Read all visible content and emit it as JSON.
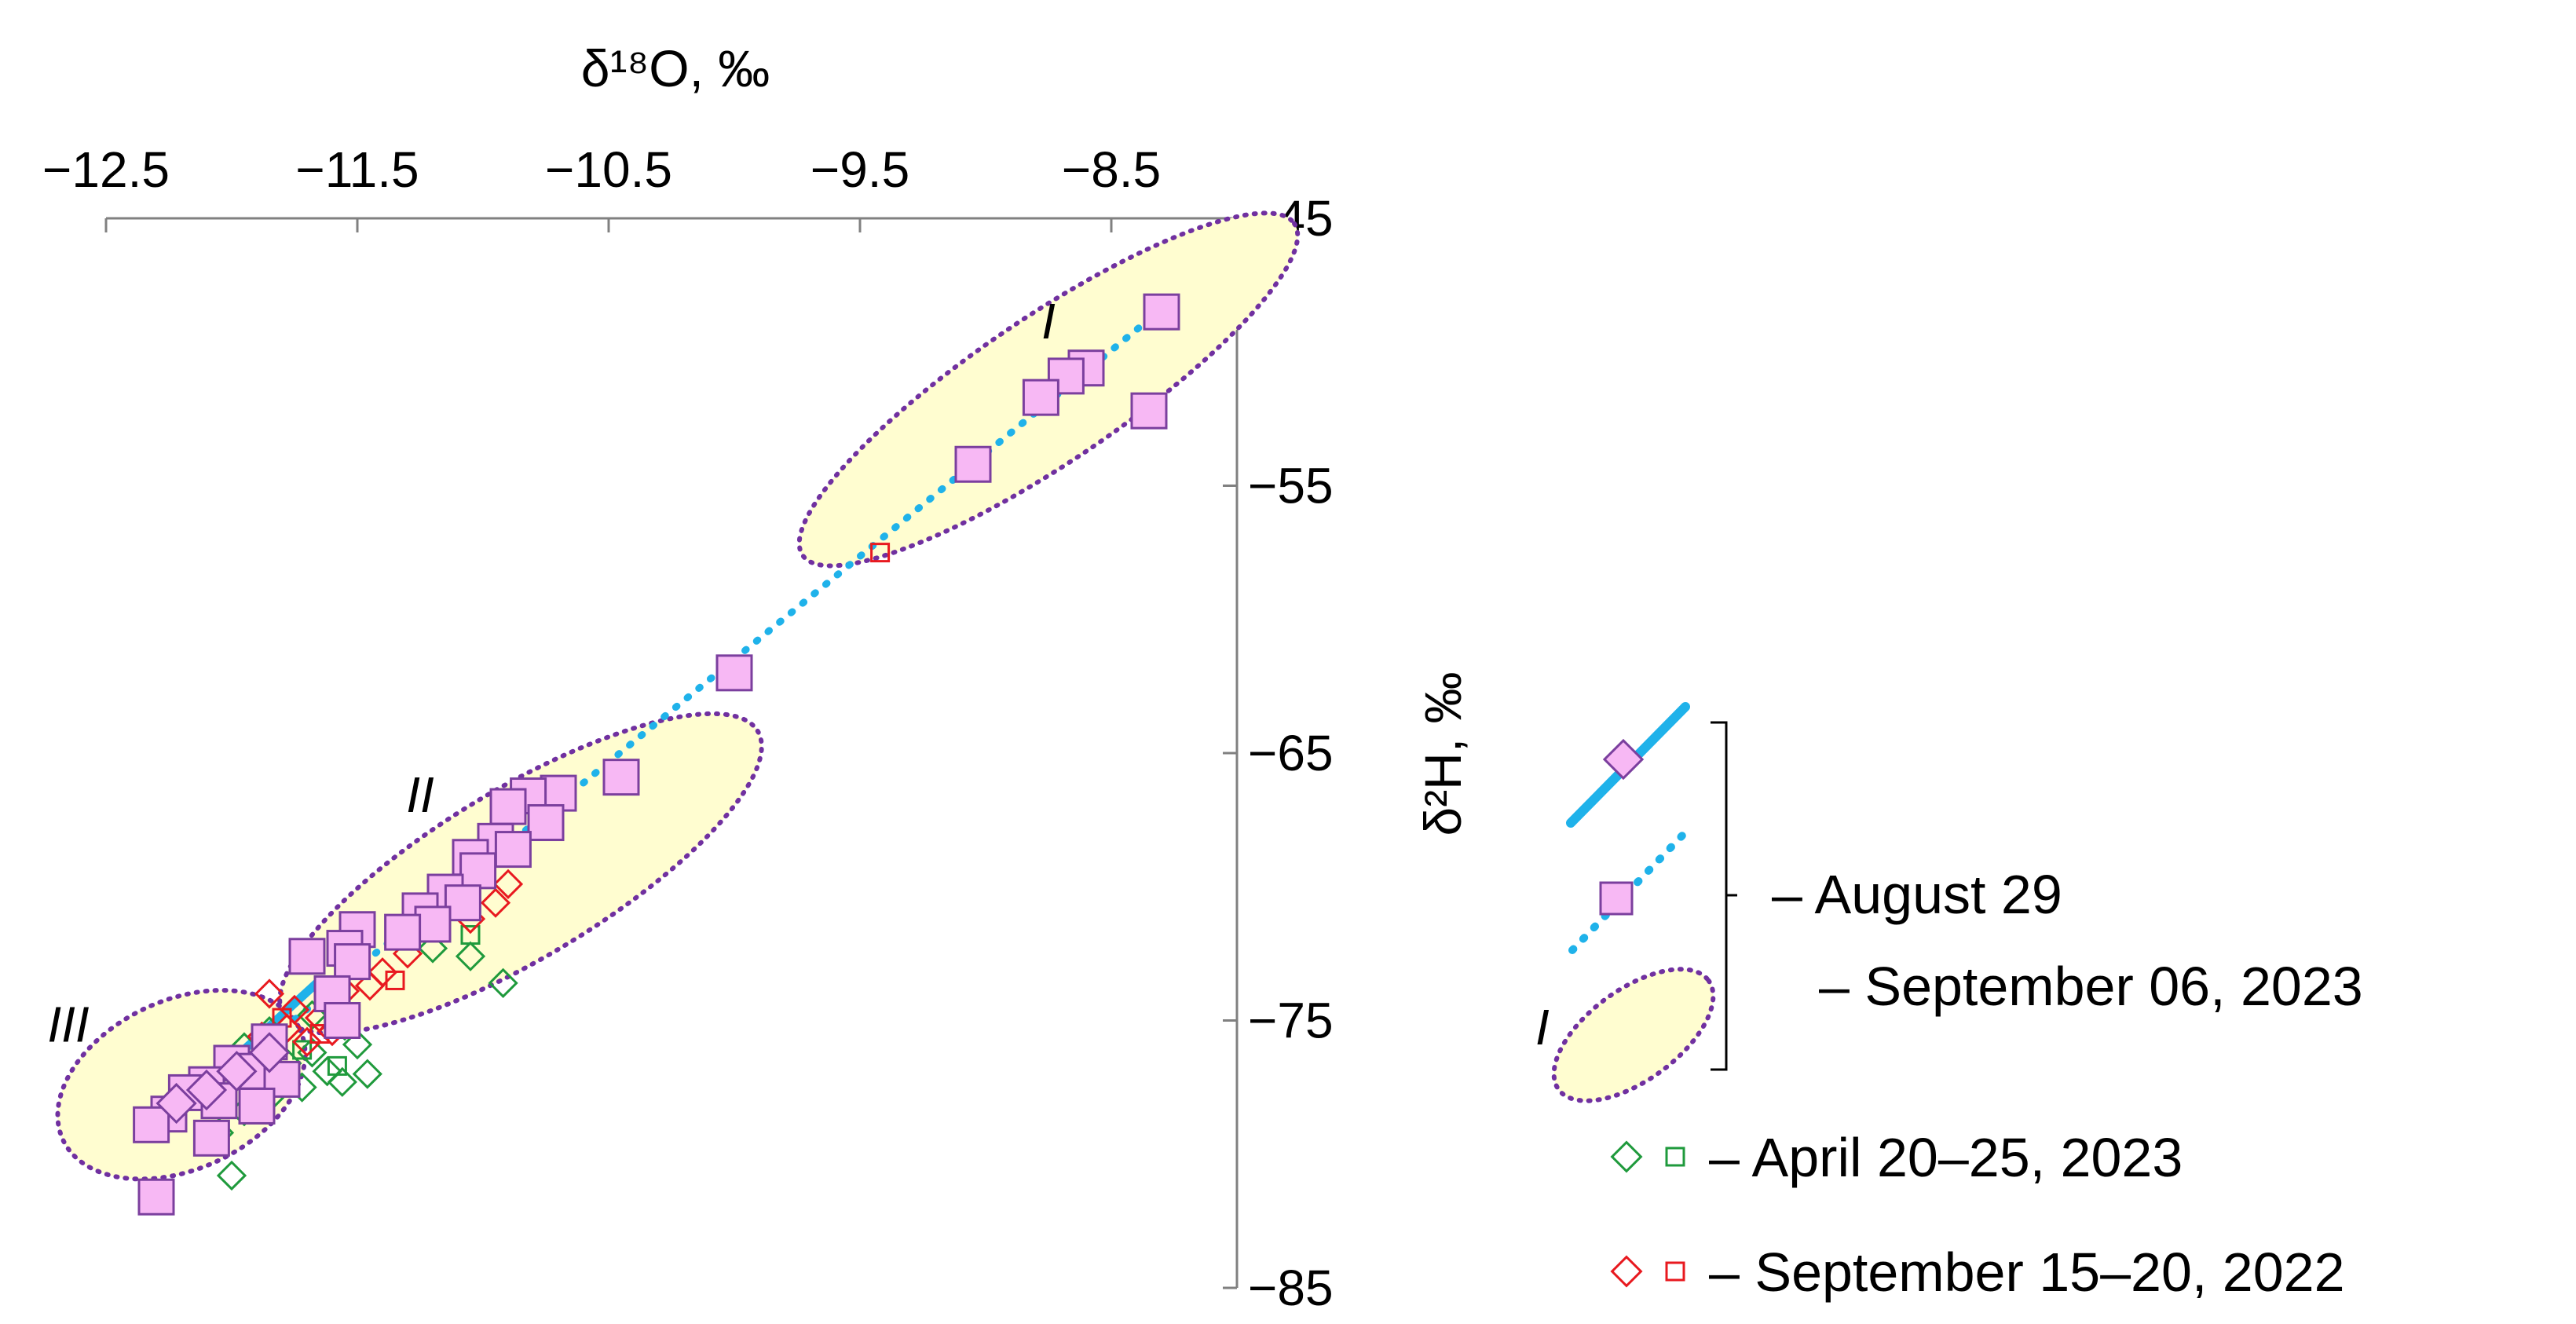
{
  "chart_data": {
    "type": "scatter",
    "xlabel": "δ¹⁸O, ‰",
    "ylabel": "δ²H, ‰",
    "xlim": [
      -12.5,
      -8.0
    ],
    "ylim": [
      -85,
      -45
    ],
    "x_axis_position": "top",
    "y_axis_position": "right",
    "x_ticks": [
      -12.5,
      -11.5,
      -10.5,
      -9.5,
      -8.5
    ],
    "x_tick_labels": [
      "−12.5",
      "−11.5",
      "−10.5",
      "−9.5",
      "−8.5"
    ],
    "y_ticks": [
      -45,
      -55,
      -65,
      -75,
      -85
    ],
    "y_tick_labels": [
      "−45",
      "−55",
      "−65",
      "−75",
      "−85"
    ],
    "grid": false,
    "legend_position": "right",
    "legend": [
      {
        "label_line1": "– August 29",
        "label_line2": "– September 06, 2023",
        "markers": [
          "solid-line-diamond",
          "dotted-line-square",
          "ellipse-I"
        ]
      },
      {
        "label": "– April 20–25, 2023",
        "markers": [
          "green-diamond",
          "green-square"
        ]
      },
      {
        "label": "– September 15–20, 2022",
        "markers": [
          "red-diamond",
          "red-square"
        ]
      }
    ],
    "group_labels": [
      {
        "text": "I",
        "x": -8.75,
        "y": -49.5
      },
      {
        "text": "II",
        "x": -11.25,
        "y": -67.2
      },
      {
        "text": "III",
        "x": -12.65,
        "y": -75.8
      }
    ],
    "ellipses": [
      {
        "name": "I",
        "cx": -8.75,
        "cy": -51.4,
        "rx": 1.18,
        "ry": 0.24,
        "angle_deg": -34
      },
      {
        "name": "II",
        "cx": -10.85,
        "cy": -69.5,
        "rx": 1.1,
        "ry": 0.28,
        "angle_deg": -31
      },
      {
        "name": "III",
        "cx": -12.2,
        "cy": -77.4,
        "rx": 0.52,
        "ry": 0.28,
        "angle_deg": -25
      }
    ],
    "lines": [
      {
        "name": "regression-solid",
        "style": "solid",
        "color": "#1fb2ea",
        "x": [
          -12.3,
          -11.65
        ],
        "y": [
          -79.1,
          -73.5
        ]
      },
      {
        "name": "regression-dotted",
        "style": "dotted",
        "color": "#1fb2ea",
        "x": [
          -12.3,
          -8.3
        ],
        "y": [
          -79.2,
          -48.4
        ]
      }
    ],
    "series": [
      {
        "name": "August 29 – September 06, 2023",
        "marker": "square",
        "fill": "#f7b8f4",
        "stroke": "#7b3f9e",
        "points": [
          [
            -8.3,
            -48.5
          ],
          [
            -8.6,
            -50.6
          ],
          [
            -8.68,
            -50.9
          ],
          [
            -8.78,
            -51.7
          ],
          [
            -8.35,
            -52.2
          ],
          [
            -9.05,
            -54.2
          ],
          [
            -10.0,
            -62.0
          ],
          [
            -10.45,
            -65.9
          ],
          [
            -10.7,
            -66.5
          ],
          [
            -10.82,
            -66.6
          ],
          [
            -10.9,
            -67.0
          ],
          [
            -10.75,
            -67.6
          ],
          [
            -10.95,
            -68.3
          ],
          [
            -10.88,
            -68.6
          ],
          [
            -11.05,
            -68.9
          ],
          [
            -11.02,
            -69.4
          ],
          [
            -11.15,
            -70.2
          ],
          [
            -11.08,
            -70.6
          ],
          [
            -11.25,
            -70.9
          ],
          [
            -11.2,
            -71.4
          ],
          [
            -11.32,
            -71.7
          ],
          [
            -11.5,
            -71.6
          ],
          [
            -11.55,
            -72.3
          ],
          [
            -11.7,
            -72.6
          ],
          [
            -11.52,
            -72.8
          ],
          [
            -11.6,
            -74.0
          ],
          [
            -11.56,
            -75.0
          ],
          [
            -11.85,
            -75.8
          ],
          [
            -12.0,
            -76.6
          ],
          [
            -11.9,
            -76.9
          ],
          [
            -11.8,
            -77.2
          ],
          [
            -12.1,
            -77.4
          ],
          [
            -12.18,
            -77.7
          ],
          [
            -12.05,
            -78.0
          ],
          [
            -11.9,
            -78.2
          ],
          [
            -12.25,
            -78.5
          ],
          [
            -12.32,
            -78.9
          ],
          [
            -12.08,
            -79.4
          ],
          [
            -12.3,
            -81.6
          ]
        ]
      },
      {
        "name": "August 29 – September 06, 2023 (solid-line)",
        "marker": "diamond",
        "fill": "#f7b8f4",
        "stroke": "#7b3f9e",
        "points": [
          [
            -11.85,
            -76.2
          ],
          [
            -11.98,
            -76.9
          ],
          [
            -12.1,
            -77.6
          ],
          [
            -12.22,
            -78.1
          ]
        ]
      },
      {
        "name": "April 20–25, 2023",
        "marker": "diamond",
        "fill": "none",
        "stroke": "#1f9a3c",
        "points": [
          [
            -11.55,
            -75.2
          ],
          [
            -11.5,
            -75.9
          ],
          [
            -11.68,
            -76.2
          ],
          [
            -11.78,
            -76.6
          ],
          [
            -11.62,
            -76.9
          ],
          [
            -11.46,
            -77.0
          ],
          [
            -11.56,
            -77.3
          ],
          [
            -11.72,
            -77.5
          ],
          [
            -11.85,
            -77.9
          ],
          [
            -11.95,
            -78.4
          ],
          [
            -12.05,
            -79.2
          ],
          [
            -12.0,
            -80.8
          ],
          [
            -11.85,
            -75.4
          ],
          [
            -11.95,
            -76.0
          ],
          [
            -10.92,
            -73.6
          ],
          [
            -11.05,
            -72.6
          ],
          [
            -11.2,
            -72.3
          ],
          [
            -11.68,
            -74.8
          ]
        ]
      },
      {
        "name": "April 20–25, 2023 (square)",
        "marker": "square-small",
        "fill": "none",
        "stroke": "#1f9a3c",
        "points": [
          [
            -11.72,
            -76.1
          ],
          [
            -11.58,
            -76.7
          ],
          [
            -11.9,
            -77.0
          ],
          [
            -11.05,
            -71.8
          ]
        ]
      },
      {
        "name": "September 15–20, 2022",
        "marker": "diamond",
        "fill": "none",
        "stroke": "#e8191f",
        "points": [
          [
            -11.85,
            -74.0
          ],
          [
            -11.75,
            -74.6
          ],
          [
            -11.65,
            -74.9
          ],
          [
            -11.55,
            -73.9
          ],
          [
            -11.45,
            -73.7
          ],
          [
            -11.4,
            -73.2
          ],
          [
            -11.3,
            -72.5
          ],
          [
            -11.78,
            -75.3
          ],
          [
            -11.88,
            -75.6
          ],
          [
            -11.7,
            -75.8
          ],
          [
            -11.6,
            -75.4
          ],
          [
            -11.05,
            -71.2
          ],
          [
            -10.95,
            -70.6
          ],
          [
            -10.9,
            -69.9
          ]
        ]
      },
      {
        "name": "September 15–20, 2022 (square)",
        "marker": "square-small",
        "fill": "none",
        "stroke": "#e8191f",
        "points": [
          [
            -9.42,
            -57.5
          ],
          [
            -11.8,
            -74.9
          ],
          [
            -11.65,
            -75.5
          ],
          [
            -11.35,
            -73.5
          ]
        ]
      }
    ]
  }
}
